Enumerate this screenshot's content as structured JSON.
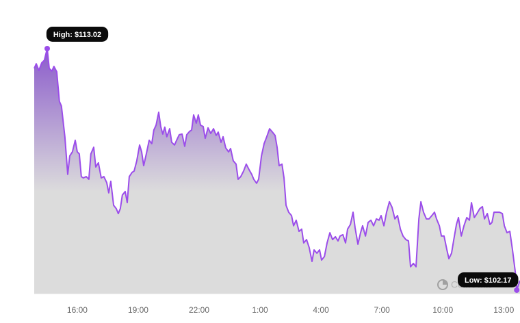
{
  "chart_data": {
    "type": "area",
    "color": "#9b4dea",
    "fill_top_color": "#8a5acb",
    "fill_bottom_color": "#dcdcdc",
    "watermark": "CoinStats",
    "x": [
      13.88,
      13.98,
      14.11,
      14.25,
      14.38,
      14.52,
      14.62,
      14.75,
      14.85,
      14.99,
      15.12,
      15.22,
      15.39,
      15.53,
      15.63,
      15.76,
      15.9,
      16.0,
      16.1,
      16.2,
      16.3,
      16.44,
      16.57,
      16.67,
      16.81,
      16.91,
      17.04,
      17.18,
      17.31,
      17.45,
      17.55,
      17.65,
      17.79,
      17.92,
      18.02,
      18.12,
      18.22,
      18.36,
      18.46,
      18.56,
      18.7,
      18.8,
      18.93,
      19.07,
      19.17,
      19.27,
      19.4,
      19.54,
      19.67,
      19.77,
      19.88,
      20.01,
      20.11,
      20.21,
      20.31,
      20.41,
      20.55,
      20.65,
      20.79,
      20.89,
      21.02,
      21.16,
      21.29,
      21.39,
      21.53,
      21.63,
      21.73,
      21.86,
      21.96,
      22.07,
      22.2,
      22.3,
      22.44,
      22.57,
      22.71,
      22.84,
      22.94,
      23.08,
      23.18,
      23.31,
      23.45,
      23.55,
      23.68,
      23.82,
      23.92,
      24.05,
      24.19,
      24.32,
      24.46,
      24.59,
      24.69,
      24.83,
      24.93,
      25.07,
      25.2,
      25.33,
      25.47,
      25.61,
      25.74,
      25.84,
      25.94,
      26.08,
      26.18,
      26.28,
      26.41,
      26.55,
      26.65,
      26.78,
      26.92,
      27.05,
      27.15,
      27.29,
      27.42,
      27.56,
      27.66,
      27.8,
      27.93,
      28.03,
      28.17,
      28.3,
      28.44,
      28.57,
      28.71,
      28.84,
      28.94,
      29.08,
      29.21,
      29.31,
      29.45,
      29.58,
      29.68,
      29.82,
      29.95,
      30.05,
      30.19,
      30.32,
      30.46,
      30.59,
      30.73,
      30.86,
      30.96,
      31.1,
      31.23,
      31.37,
      31.5,
      31.64,
      31.77,
      31.91,
      32.04,
      32.18,
      32.31,
      32.41,
      32.55,
      32.68,
      32.82,
      32.92,
      33.05,
      33.19,
      33.32,
      33.46,
      33.59,
      33.69,
      33.83,
      33.93,
      34.06,
      34.2,
      34.3,
      34.43,
      34.54,
      34.67,
      34.77,
      34.91,
      35.04,
      35.18,
      35.31,
      35.41,
      35.55,
      35.68,
      35.82,
      35.95,
      36.05,
      36.19,
      36.32,
      36.42,
      36.52,
      36.66,
      36.79,
      36.93,
      37.03,
      37.16,
      37.3,
      37.43,
      37.57,
      37.64,
      37.74,
      37.8
    ],
    "values": [
      112.13,
      112.34,
      112.04,
      112.38,
      112.5,
      113.02,
      112.13,
      112.01,
      112.22,
      111.98,
      110.65,
      110.44,
      109.06,
      107.37,
      108.2,
      108.38,
      108.9,
      108.38,
      108.29,
      107.27,
      107.21,
      107.27,
      107.15,
      108.29,
      108.59,
      107.7,
      107.89,
      107.21,
      107.27,
      107.0,
      106.54,
      107.06,
      105.98,
      105.83,
      105.61,
      105.83,
      106.44,
      106.6,
      106.1,
      107.27,
      107.46,
      107.52,
      107.98,
      108.69,
      108.38,
      107.76,
      108.29,
      108.9,
      108.75,
      109.36,
      109.58,
      110.16,
      109.52,
      109.18,
      109.49,
      109.06,
      109.42,
      108.81,
      108.69,
      108.9,
      109.15,
      109.18,
      108.63,
      109.15,
      109.3,
      109.36,
      110.04,
      109.67,
      110.04,
      109.58,
      109.52,
      108.99,
      109.46,
      109.21,
      109.42,
      109.12,
      109.27,
      108.81,
      109.06,
      108.56,
      108.38,
      108.53,
      107.98,
      107.83,
      107.15,
      107.27,
      107.52,
      107.83,
      107.58,
      107.37,
      107.15,
      106.97,
      107.15,
      108.2,
      108.75,
      109.06,
      109.42,
      109.27,
      109.12,
      108.59,
      107.76,
      107.83,
      107.21,
      105.98,
      105.67,
      105.52,
      105.06,
      105.31,
      104.81,
      104.91,
      104.29,
      104.44,
      104.08,
      103.46,
      103.98,
      103.83,
      103.98,
      103.52,
      103.68,
      104.29,
      104.75,
      104.44,
      104.57,
      104.38,
      104.6,
      104.66,
      104.29,
      104.91,
      105.12,
      105.67,
      104.97,
      104.23,
      104.75,
      105.06,
      104.6,
      105.21,
      105.31,
      105.06,
      105.37,
      105.31,
      105.52,
      105.06,
      105.67,
      106.14,
      105.89,
      105.37,
      105.52,
      104.91,
      104.6,
      104.44,
      104.38,
      103.22,
      103.37,
      103.22,
      105.37,
      106.14,
      105.67,
      105.37,
      105.37,
      105.52,
      105.67,
      105.37,
      105.06,
      104.6,
      104.6,
      103.98,
      103.58,
      103.83,
      104.44,
      105.12,
      105.43,
      104.6,
      105.06,
      105.43,
      105.31,
      106.1,
      105.43,
      105.61,
      105.83,
      105.92,
      105.37,
      105.61,
      105.12,
      105.21,
      105.67,
      105.67,
      105.67,
      105.61,
      105.06,
      104.75,
      104.81,
      103.98,
      102.97,
      102.17,
      102.45,
      102.6
    ],
    "xlim": [
      13.88,
      37.8
    ],
    "xticks": [
      {
        "value": 16,
        "label": "16:00"
      },
      {
        "value": 19,
        "label": "19:00"
      },
      {
        "value": 22,
        "label": "22:00"
      },
      {
        "value": 25,
        "label": "1:00"
      },
      {
        "value": 28,
        "label": "4:00"
      },
      {
        "value": 31,
        "label": "7:00"
      },
      {
        "value": 34,
        "label": "10:00"
      },
      {
        "value": 37,
        "label": "13:00"
      }
    ],
    "ylim": [
      102.0,
      114.2
    ],
    "annotations": [
      {
        "text": "High: $113.02",
        "x": 14.52,
        "value": 113.02
      },
      {
        "text": "Low: $102.17",
        "x": 37.64,
        "value": 102.17
      }
    ]
  }
}
